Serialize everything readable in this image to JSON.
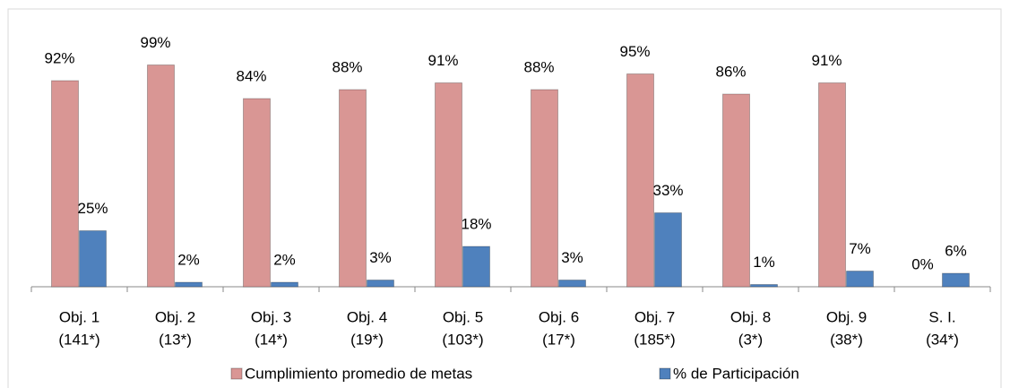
{
  "chart_data": {
    "type": "bar",
    "categories": [
      [
        "Obj. 1",
        "(141*)"
      ],
      [
        "Obj. 2",
        "(13*)"
      ],
      [
        "Obj. 3",
        "(14*)"
      ],
      [
        "Obj. 4",
        "(19*)"
      ],
      [
        "Obj. 5",
        "(103*)"
      ],
      [
        "Obj. 6",
        "(17*)"
      ],
      [
        "Obj. 7",
        "(185*)"
      ],
      [
        "Obj. 8",
        "(3*)"
      ],
      [
        "Obj. 9",
        "(38*)"
      ],
      [
        "S. I.",
        "(34*)"
      ]
    ],
    "series": [
      {
        "name": "Cumplimiento promedio de metas",
        "color": "#d99694",
        "values": [
          92,
          99,
          84,
          88,
          91,
          88,
          95,
          86,
          91,
          0
        ],
        "value_labels": [
          "92%",
          "99%",
          "84%",
          "88%",
          "91%",
          "88%",
          "95%",
          "86%",
          "91%",
          "0%"
        ]
      },
      {
        "name": "% de Participación",
        "color": "#4f81bd",
        "values": [
          25,
          2,
          2,
          3,
          18,
          3,
          33,
          1,
          7,
          6
        ],
        "value_labels": [
          "25%",
          "2%",
          "2%",
          "3%",
          "18%",
          "3%",
          "33%",
          "1%",
          "7%",
          "6%"
        ]
      }
    ],
    "ylim": [
      0,
      100
    ],
    "legend": "bottom"
  }
}
